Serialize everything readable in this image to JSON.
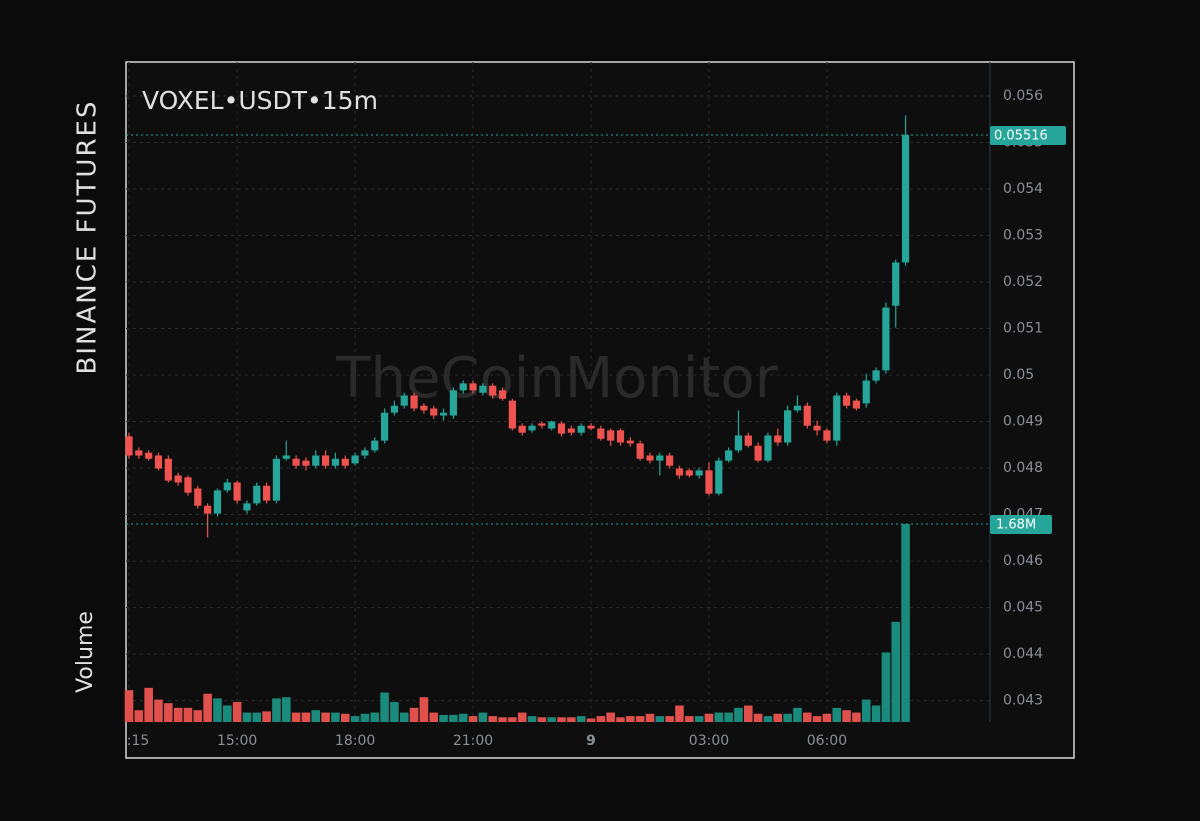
{
  "chart_data": {
    "type": "candlestick",
    "title": "VOXEL•USDT•15m",
    "exchange": "BINANCE FUTURES",
    "volume_title": "Volume",
    "watermark": "TheCoinMonitor",
    "categories": [
      ":15",
      null,
      null,
      null,
      null,
      null,
      null,
      null,
      null,
      null,
      null,
      "15:00",
      null,
      null,
      null,
      null,
      null,
      null,
      null,
      null,
      null,
      null,
      null,
      "18:00",
      null,
      null,
      null,
      null,
      null,
      null,
      null,
      null,
      null,
      null,
      null,
      "21:00",
      null,
      null,
      null,
      null,
      null,
      null,
      null,
      null,
      null,
      null,
      null,
      "9",
      null,
      null,
      null,
      null,
      null,
      null,
      null,
      null,
      null,
      null,
      null,
      "03:00",
      null,
      null,
      null,
      null,
      null,
      null,
      null,
      null,
      null,
      null,
      null,
      "06:00",
      null,
      null,
      null,
      null,
      null,
      null,
      null,
      null
    ],
    "open": [
      0.04868,
      0.04838,
      0.04833,
      0.04827,
      0.0482,
      0.04784,
      0.0478,
      0.04756,
      0.04719,
      0.04702,
      0.04752,
      0.04769,
      0.04709,
      0.04724,
      0.04762,
      0.0473,
      0.0482,
      0.0482,
      0.04816,
      0.04805,
      0.04827,
      0.04805,
      0.0482,
      0.0481,
      0.04827,
      0.04838,
      0.04859,
      0.04919,
      0.04934,
      0.04956,
      0.04934,
      0.04928,
      0.04913,
      0.04913,
      0.04967,
      0.04982,
      0.04962,
      0.04977,
      0.04967,
      0.04945,
      0.04891,
      0.04881,
      0.04896,
      0.04885,
      0.04896,
      0.04885,
      0.04876,
      0.04891,
      0.04885,
      0.04881,
      0.04881,
      0.04859,
      0.04853,
      0.04827,
      0.04816,
      0.04827,
      0.04799,
      0.04795,
      0.04784,
      0.04795,
      0.04745,
      0.04816,
      0.04838,
      0.0487,
      0.04848,
      0.04816,
      0.0487,
      0.04855,
      0.04924,
      0.04934,
      0.04891,
      0.04881,
      0.04859,
      0.04956,
      0.04945,
      0.04939,
      0.04988,
      0.0501,
      0.05149,
      0.05242
    ],
    "high": [
      0.04876,
      0.04844,
      0.04838,
      0.04833,
      0.04827,
      0.0479,
      0.04784,
      0.04762,
      0.04724,
      0.04756,
      0.04777,
      0.04773,
      0.0473,
      0.04769,
      0.04769,
      0.04827,
      0.04859,
      0.04827,
      0.04823,
      0.04838,
      0.04838,
      0.04833,
      0.04827,
      0.04833,
      0.04844,
      0.04866,
      0.04928,
      0.04945,
      0.04962,
      0.04962,
      0.04939,
      0.04934,
      0.04928,
      0.04973,
      0.04988,
      0.04988,
      0.04982,
      0.04982,
      0.04973,
      0.04949,
      0.04896,
      0.04896,
      0.049,
      0.04902,
      0.049,
      0.04891,
      0.04896,
      0.04896,
      0.04891,
      0.04885,
      0.04885,
      0.04866,
      0.04859,
      0.04833,
      0.04833,
      0.04833,
      0.04805,
      0.04799,
      0.04801,
      0.04812,
      0.04823,
      0.04844,
      0.04924,
      0.04876,
      0.04855,
      0.04876,
      0.04885,
      0.04934,
      0.04956,
      0.04941,
      0.04902,
      0.04885,
      0.04962,
      0.04962,
      0.04949,
      0.05003,
      0.05016,
      0.05156,
      0.05248,
      0.05558
    ],
    "low": [
      0.0482,
      0.0482,
      0.04816,
      0.04795,
      0.04769,
      0.04762,
      0.04741,
      0.04713,
      0.04651,
      0.04696,
      0.04747,
      0.04724,
      0.04702,
      0.04719,
      0.04724,
      0.04724,
      0.04816,
      0.04799,
      0.04795,
      0.04799,
      0.04799,
      0.04799,
      0.04799,
      0.04805,
      0.0482,
      0.04833,
      0.04853,
      0.04913,
      0.04928,
      0.04922,
      0.04917,
      0.04906,
      0.04902,
      0.04906,
      0.0496,
      0.0496,
      0.04956,
      0.04949,
      0.04945,
      0.04881,
      0.0487,
      0.04876,
      0.04885,
      0.04881,
      0.04868,
      0.0487,
      0.0487,
      0.04881,
      0.04859,
      0.04848,
      0.04848,
      0.04846,
      0.04816,
      0.0481,
      0.04784,
      0.04799,
      0.04777,
      0.0478,
      0.04777,
      0.04741,
      0.04741,
      0.04812,
      0.04833,
      0.04844,
      0.04812,
      0.04812,
      0.04848,
      0.04848,
      0.04919,
      0.04885,
      0.0487,
      0.04853,
      0.04848,
      0.04928,
      0.04924,
      0.0493,
      0.04982,
      0.05003,
      0.05102,
      0.05235
    ],
    "close": [
      0.04827,
      0.04827,
      0.0482,
      0.04799,
      0.04773,
      0.04769,
      0.04747,
      0.04719,
      0.04702,
      0.04752,
      0.04769,
      0.0473,
      0.04724,
      0.04762,
      0.0473,
      0.0482,
      0.04827,
      0.04805,
      0.04805,
      0.04827,
      0.04805,
      0.0482,
      0.04805,
      0.04827,
      0.04838,
      0.04859,
      0.04919,
      0.04934,
      0.04956,
      0.04928,
      0.04924,
      0.04913,
      0.04919,
      0.04967,
      0.04982,
      0.04967,
      0.04977,
      0.04956,
      0.04949,
      0.04885,
      0.04876,
      0.04891,
      0.04891,
      0.049,
      0.04874,
      0.04876,
      0.04891,
      0.04885,
      0.04863,
      0.04859,
      0.04855,
      0.04853,
      0.0482,
      0.04816,
      0.04827,
      0.04805,
      0.04784,
      0.04784,
      0.04795,
      0.04745,
      0.04816,
      0.04838,
      0.0487,
      0.04848,
      0.04816,
      0.0487,
      0.04855,
      0.04924,
      0.04934,
      0.04891,
      0.04881,
      0.04859,
      0.04956,
      0.04934,
      0.04928,
      0.04988,
      0.0501,
      0.05145,
      0.05242,
      0.05516
    ],
    "volume": [
      270000,
      100000,
      290000,
      190000,
      160000,
      120000,
      120000,
      100000,
      240000,
      200000,
      140000,
      170000,
      80000,
      80000,
      90000,
      200000,
      210000,
      80000,
      80000,
      100000,
      80000,
      80000,
      70000,
      50000,
      70000,
      80000,
      250000,
      170000,
      80000,
      120000,
      210000,
      80000,
      60000,
      60000,
      70000,
      50000,
      80000,
      50000,
      40000,
      40000,
      80000,
      50000,
      40000,
      40000,
      40000,
      40000,
      50000,
      30000,
      50000,
      80000,
      40000,
      50000,
      50000,
      70000,
      50000,
      50000,
      140000,
      50000,
      50000,
      70000,
      80000,
      80000,
      120000,
      140000,
      70000,
      50000,
      70000,
      70000,
      120000,
      80000,
      50000,
      70000,
      120000,
      100000,
      80000,
      190000,
      140000,
      590000,
      850000,
      1680000
    ],
    "volume_value_label": "1.68M",
    "ylim": [
      0.04254,
      0.05673
    ],
    "yticks": [
      0.043,
      0.044,
      0.045,
      0.046,
      0.047,
      0.048,
      0.049,
      0.05,
      0.051,
      0.052,
      0.053,
      0.054,
      0.055,
      0.056
    ],
    "vlim": [
      0,
      1680000
    ],
    "grid": true,
    "up_color": "#26a69a",
    "down_color": "#ef5350",
    "volume_up_color": "#1a8a7c",
    "volume_down_color": "#e0504c"
  }
}
